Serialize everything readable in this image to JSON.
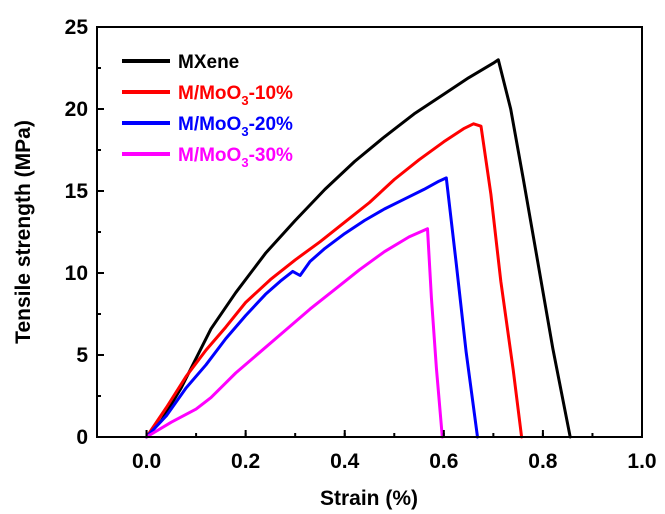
{
  "chart_data": {
    "type": "line",
    "xlabel": "Strain (%)",
    "ylabel": "Tensile strength (MPa)",
    "xlim": [
      -0.1,
      1.0
    ],
    "ylim": [
      0,
      25
    ],
    "xticks": [
      "0.0",
      "0.2",
      "0.4",
      "0.6",
      "0.8",
      "1.0"
    ],
    "yticks": [
      "0",
      "5",
      "10",
      "15",
      "20",
      "25"
    ],
    "grid": false,
    "legend_position": "top-left",
    "series": [
      {
        "name": "MXene",
        "color": "#000000",
        "x": [
          0.0,
          0.03,
          0.07,
          0.1,
          0.13,
          0.18,
          0.24,
          0.3,
          0.36,
          0.42,
          0.48,
          0.54,
          0.6,
          0.65,
          0.7,
          0.71,
          0.735,
          0.76,
          0.79,
          0.82,
          0.855
        ],
        "y": [
          0.0,
          1.0,
          3.0,
          4.8,
          6.6,
          8.8,
          11.2,
          13.2,
          15.1,
          16.8,
          18.3,
          19.7,
          20.9,
          21.9,
          22.8,
          23.0,
          20.0,
          15.8,
          10.6,
          5.4,
          0.0
        ]
      },
      {
        "name": "M/MoO3-10%",
        "color": "#ff0000",
        "x": [
          0.0,
          0.04,
          0.08,
          0.12,
          0.16,
          0.2,
          0.25,
          0.3,
          0.35,
          0.4,
          0.45,
          0.5,
          0.55,
          0.6,
          0.64,
          0.66,
          0.675,
          0.695,
          0.715,
          0.74,
          0.757
        ],
        "y": [
          0.0,
          1.8,
          3.7,
          5.3,
          6.7,
          8.2,
          9.6,
          10.8,
          11.9,
          13.1,
          14.3,
          15.7,
          16.9,
          18.0,
          18.8,
          19.1,
          18.95,
          14.8,
          9.5,
          4.1,
          0.0
        ]
      },
      {
        "name": "M/MoO3-20%",
        "color": "#0000ff",
        "x": [
          0.0,
          0.04,
          0.08,
          0.12,
          0.16,
          0.2,
          0.24,
          0.27,
          0.295,
          0.31,
          0.33,
          0.36,
          0.4,
          0.44,
          0.48,
          0.52,
          0.56,
          0.59,
          0.605,
          0.625,
          0.645,
          0.668
        ],
        "y": [
          0.0,
          1.3,
          3.0,
          4.4,
          6.0,
          7.4,
          8.7,
          9.5,
          10.1,
          9.85,
          10.7,
          11.5,
          12.4,
          13.2,
          13.9,
          14.5,
          15.1,
          15.6,
          15.8,
          10.6,
          5.2,
          0.0
        ]
      },
      {
        "name": "M/MoO3-30%",
        "color": "#ff00ff",
        "x": [
          0.0,
          0.05,
          0.1,
          0.13,
          0.18,
          0.23,
          0.28,
          0.33,
          0.38,
          0.43,
          0.48,
          0.53,
          0.567,
          0.575,
          0.585,
          0.597
        ],
        "y": [
          0.0,
          0.9,
          1.7,
          2.4,
          3.9,
          5.2,
          6.5,
          7.8,
          9.0,
          10.2,
          11.3,
          12.2,
          12.7,
          8.5,
          4.2,
          0.0
        ]
      }
    ]
  },
  "legend": {
    "items": [
      {
        "color": "#000000",
        "main": "MXene",
        "sub": "",
        "tail": ""
      },
      {
        "color": "#ff0000",
        "main": "M/MoO",
        "sub": "3",
        "tail": "-10%"
      },
      {
        "color": "#0000ff",
        "main": "M/MoO",
        "sub": "3",
        "tail": "-20%"
      },
      {
        "color": "#ff00ff",
        "main": "M/MoO",
        "sub": "3",
        "tail": "-30%"
      }
    ]
  }
}
